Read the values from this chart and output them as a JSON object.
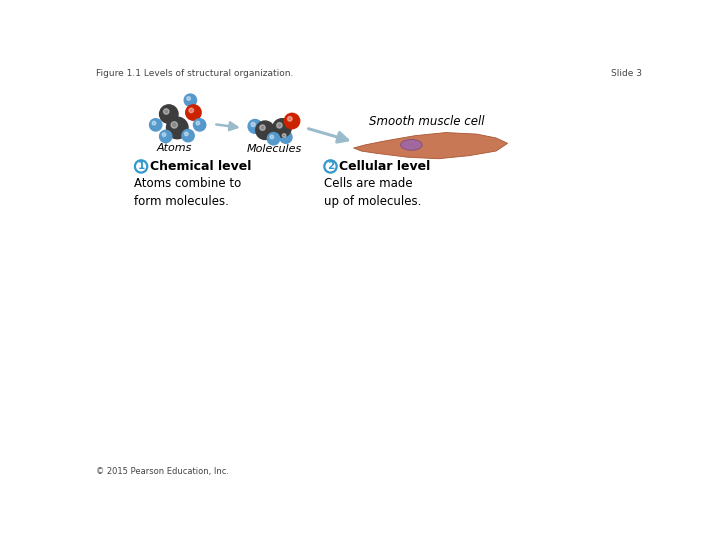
{
  "title_left": "Figure 1.1 Levels of structural organization.",
  "title_right": "Slide 3",
  "footer": "© 2015 Pearson Education, Inc.",
  "smooth_muscle_label": "Smooth muscle cell",
  "atoms_label": "Atoms",
  "molecules_label": "Molecules",
  "level1_circle_text": "1",
  "level1_bold": "Chemical level",
  "level1_desc": "Atoms combine to\nform molecules.",
  "level2_circle_text": "2",
  "level2_bold": "Cellular level",
  "level2_desc": "Cells are made\nup of molecules.",
  "bg_color": "#ffffff",
  "dark_atom": "#3d3d3d",
  "red_atom": "#cc2200",
  "blue_atom": "#5599cc",
  "circle_border_color": "#3399cc",
  "circle_text_color": "#3399cc",
  "arrow_color": "#99bbcc",
  "muscle_fill": "#c87855",
  "muscle_edge": "#aa5533",
  "muscle_nucleus_fill": "#9966aa",
  "muscle_nucleus_edge": "#774488"
}
